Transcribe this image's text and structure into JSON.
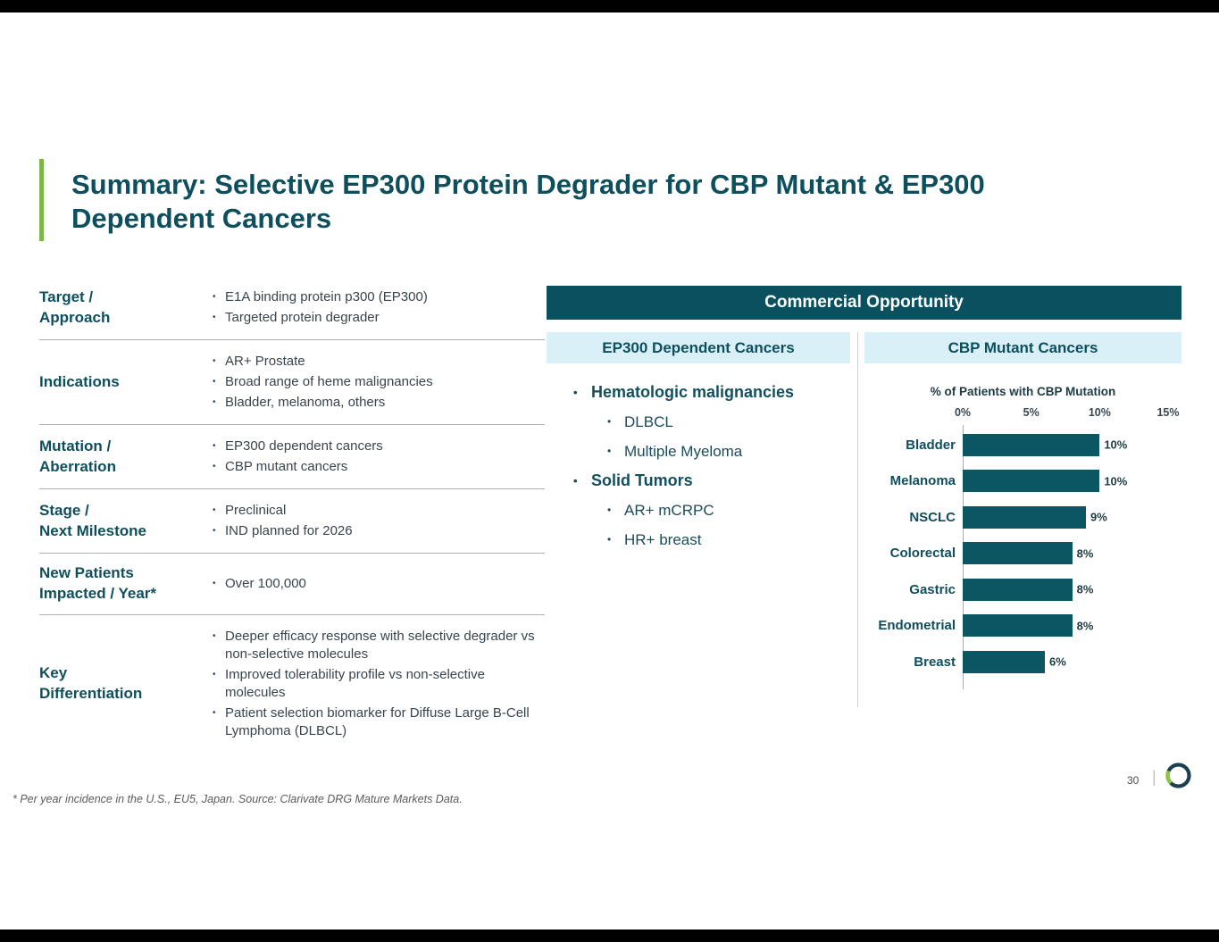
{
  "slide": {
    "title": "Summary: Selective EP300 Protein Degrader for CBP Mutant & EP300 Dependent Cancers",
    "footnote": "* Per year incidence in the U.S., EU5, Japan. Source: Clarivate DRG Mature Markets Data.",
    "page_number": "30",
    "page_divider": "|"
  },
  "summary_table": {
    "rows": [
      {
        "label": "Target /\nApproach",
        "bullets": [
          "E1A binding protein p300 (EP300)",
          "Targeted protein degrader"
        ]
      },
      {
        "label": "Indications",
        "bullets": [
          "AR+ Prostate",
          "Broad range of heme malignancies",
          "Bladder, melanoma, others"
        ]
      },
      {
        "label": "Mutation /\nAberration",
        "bullets": [
          "EP300 dependent cancers",
          "CBP mutant cancers"
        ]
      },
      {
        "label": "Stage /\nNext Milestone",
        "bullets": [
          "Preclinical",
          "IND planned for 2026"
        ]
      },
      {
        "label": "New Patients\nImpacted / Year*",
        "bullets": [
          "Over 100,000"
        ]
      },
      {
        "label": "Key\nDifferentiation",
        "bullets": [
          "Deeper efficacy response with selective degrader vs non-selective molecules",
          "Improved tolerability profile vs non-selective molecules",
          "Patient selection biomarker for Diffuse Large B-Cell Lymphoma (DLBCL)"
        ]
      }
    ]
  },
  "commercial": {
    "header": "Commercial Opportunity",
    "left": {
      "header": "EP300 Dependent Cancers",
      "groups": [
        {
          "label": "Hematologic malignancies",
          "items": [
            "DLBCL",
            "Multiple Myeloma"
          ]
        },
        {
          "label": "Solid Tumors",
          "items": [
            "AR+ mCRPC",
            "HR+ breast"
          ]
        }
      ]
    },
    "right": {
      "header": "CBP Mutant Cancers"
    }
  },
  "chart_data": {
    "type": "bar",
    "orientation": "horizontal",
    "title": "% of Patients with CBP Mutation",
    "categories": [
      "Bladder",
      "Melanoma",
      "NSCLC",
      "Colorectal",
      "Gastric",
      "Endometrial",
      "Breast"
    ],
    "values": [
      10,
      10,
      9,
      8,
      8,
      8,
      6
    ],
    "value_labels": [
      "10%",
      "10%",
      "9%",
      "8%",
      "8%",
      "8%",
      "6%"
    ],
    "x_ticks": [
      "0%",
      "5%",
      "10%",
      "15%"
    ],
    "xlim": [
      0,
      15
    ],
    "grid": false,
    "legend": false,
    "bar_color": "#0C5663"
  },
  "colors": {
    "accent_green": "#7AB648",
    "teal_dark": "#0B505E",
    "light_blue_header": "#D9F0F9",
    "bar_fill": "#0C5663"
  }
}
